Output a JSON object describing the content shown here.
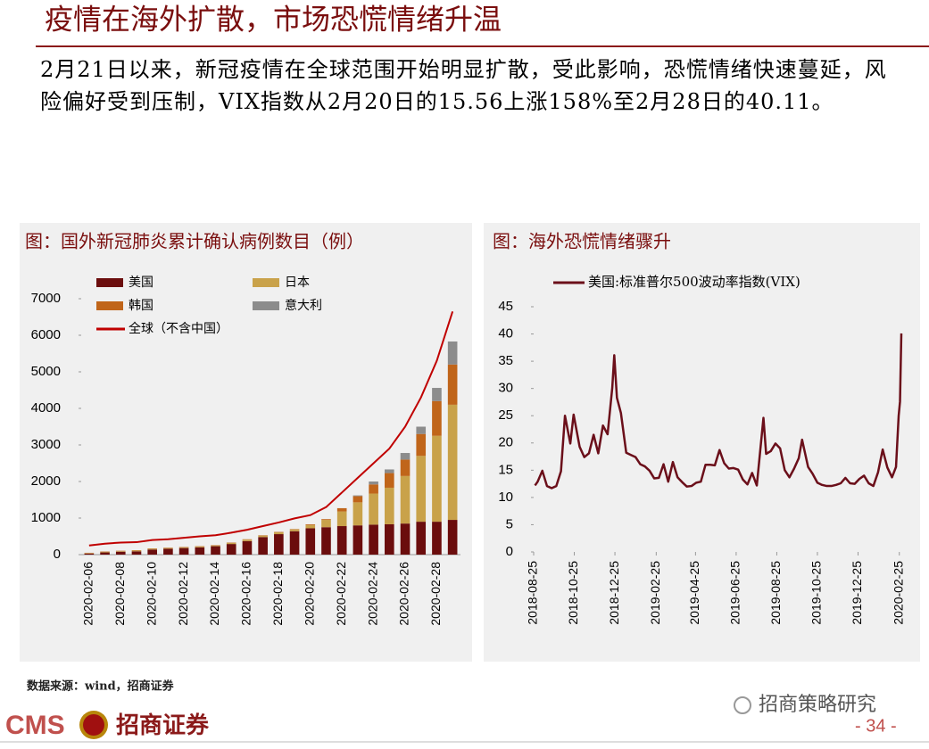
{
  "title": "疫情在海外扩散，市场恐慌情绪升温",
  "body": "2月21日以来，新冠疫情在全球范围开始明显扩散，受此影响，恐慌情绪快速蔓延，风险偏好受到压制，VIX指数从2月20日的15.56上涨158%至2月28日的40.11。",
  "source": "数据来源：wind，招商证券",
  "footer": {
    "logo": "CMS",
    "brand": "招商证券",
    "wechat": "招商策略研究",
    "page": "- 34 -"
  },
  "chart_data": [
    {
      "type": "bar",
      "stacked": true,
      "title": "图：国外新冠肺炎累计确认病例数目（例）",
      "categories": [
        "2020-02-06",
        null,
        "2020-02-08",
        null,
        "2020-02-10",
        null,
        "2020-02-12",
        null,
        "2020-02-14",
        null,
        "2020-02-16",
        null,
        "2020-02-18",
        null,
        "2020-02-20",
        null,
        "2020-02-22",
        null,
        "2020-02-24",
        null,
        "2020-02-26",
        null,
        "2020-02-28",
        null
      ],
      "series": [
        {
          "name": "美国",
          "color": "#6b0d0d",
          "values": [
            30,
            60,
            80,
            90,
            140,
            160,
            180,
            200,
            230,
            290,
            370,
            480,
            560,
            640,
            720,
            750,
            780,
            800,
            820,
            830,
            850,
            900,
            900,
            950
          ]
        },
        {
          "name": "日本",
          "color": "#c9a24a",
          "values": [
            10,
            15,
            15,
            20,
            20,
            20,
            20,
            20,
            20,
            30,
            40,
            40,
            50,
            50,
            90,
            200,
            400,
            630,
            850,
            1000,
            1300,
            1800,
            2350,
            3150
          ]
        },
        {
          "name": "韩国",
          "color": "#c0651a",
          "values": [
            10,
            10,
            10,
            10,
            10,
            10,
            10,
            10,
            10,
            10,
            10,
            10,
            10,
            10,
            20,
            20,
            90,
            170,
            250,
            400,
            450,
            600,
            950,
            1100
          ]
        },
        {
          "name": "意大利",
          "color": "#8c8c8c",
          "values": [
            0,
            0,
            0,
            0,
            0,
            0,
            0,
            0,
            0,
            0,
            0,
            0,
            0,
            0,
            0,
            0,
            0,
            20,
            80,
            100,
            180,
            200,
            360,
            630
          ]
        },
        {
          "name": "全球（不含中国）",
          "color": "#c00000",
          "type": "line",
          "values": [
            250,
            300,
            330,
            340,
            400,
            420,
            460,
            500,
            530,
            600,
            680,
            780,
            880,
            990,
            1080,
            1300,
            1700,
            2100,
            2500,
            2900,
            3500,
            4300,
            5300,
            6650
          ]
        }
      ],
      "ylim": [
        0,
        7000
      ],
      "yticks": [
        0,
        1000,
        2000,
        3000,
        4000,
        5000,
        6000,
        7000
      ]
    },
    {
      "type": "line",
      "title": "图：海外恐慌情绪骤升",
      "x": [
        "2018-08-27",
        "2018-08-31",
        "2018-09-07",
        "2018-09-14",
        "2018-09-21",
        "2018-09-28",
        "2018-10-05",
        "2018-10-11",
        "2018-10-19",
        "2018-10-24",
        "2018-11-02",
        "2018-11-09",
        "2018-11-16",
        "2018-11-23",
        "2018-11-30",
        "2018-12-07",
        "2018-12-14",
        "2018-12-21",
        "2018-12-24",
        "2018-12-28",
        "2019-01-03",
        "2019-01-11",
        "2019-01-18",
        "2019-01-25",
        "2019-02-01",
        "2019-02-08",
        "2019-02-15",
        "2019-02-22",
        "2019-03-01",
        "2019-03-08",
        "2019-03-15",
        "2019-03-22",
        "2019-03-29",
        "2019-04-05",
        "2019-04-12",
        "2019-04-19",
        "2019-04-26",
        "2019-05-03",
        "2019-05-10",
        "2019-05-17",
        "2019-05-24",
        "2019-05-31",
        "2019-06-07",
        "2019-06-14",
        "2019-06-21",
        "2019-06-28",
        "2019-07-05",
        "2019-07-12",
        "2019-07-19",
        "2019-07-26",
        "2019-08-05",
        "2019-08-09",
        "2019-08-16",
        "2019-08-23",
        "2019-08-30",
        "2019-09-06",
        "2019-09-13",
        "2019-09-20",
        "2019-09-27",
        "2019-10-02",
        "2019-10-11",
        "2019-10-18",
        "2019-10-25",
        "2019-11-01",
        "2019-11-08",
        "2019-11-15",
        "2019-11-22",
        "2019-11-29",
        "2019-12-06",
        "2019-12-13",
        "2019-12-20",
        "2019-12-27",
        "2020-01-03",
        "2020-01-10",
        "2020-01-17",
        "2020-01-24",
        "2020-01-31",
        "2020-02-07",
        "2020-02-14",
        "2020-02-20",
        "2020-02-24",
        "2020-02-26",
        "2020-02-28"
      ],
      "series": [
        {
          "name": "美国:标准普尔500波动率指数(VIX)",
          "color": "#6b0f1a",
          "values": [
            12.2,
            12.9,
            14.9,
            12.1,
            11.7,
            12.1,
            14.8,
            25.0,
            19.9,
            25.2,
            19.3,
            17.4,
            18.1,
            21.5,
            18.1,
            23.2,
            21.6,
            30.1,
            36.1,
            28.3,
            25.5,
            18.2,
            17.8,
            17.4,
            16.1,
            15.7,
            14.9,
            13.5,
            13.6,
            16.1,
            12.9,
            16.5,
            13.7,
            12.8,
            12.0,
            12.1,
            12.7,
            12.9,
            16.0,
            16.0,
            15.9,
            18.7,
            16.3,
            15.3,
            15.4,
            15.1,
            13.3,
            12.4,
            14.5,
            12.2,
            24.6,
            18.0,
            18.5,
            19.9,
            19.0,
            15.0,
            13.7,
            15.3,
            17.2,
            20.6,
            15.6,
            14.3,
            12.7,
            12.3,
            12.1,
            12.1,
            12.3,
            12.6,
            13.6,
            12.6,
            12.5,
            13.4,
            14.0,
            12.6,
            12.1,
            14.6,
            18.8,
            15.5,
            13.7,
            15.6,
            25.0,
            27.6,
            40.1
          ]
        }
      ],
      "xlim": [
        "2018-08-25",
        "2020-02-28"
      ],
      "xticks": [
        "2018-08-25",
        "2018-10-25",
        "2018-12-25",
        "2019-02-25",
        "2019-04-25",
        "2019-06-25",
        "2019-08-25",
        "2019-10-25",
        "2019-12-25",
        "2020-02-25"
      ],
      "ylim": [
        0,
        45
      ],
      "yticks": [
        0,
        5,
        10,
        15,
        20,
        25,
        30,
        35,
        40,
        45
      ]
    }
  ]
}
